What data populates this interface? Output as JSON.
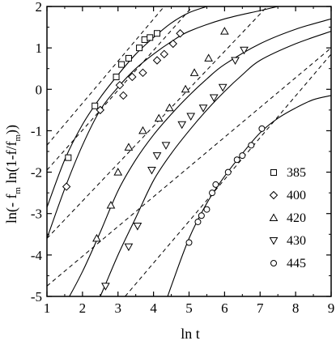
{
  "chart_data": {
    "type": "scatter",
    "xlabel": "ln t",
    "ylabel_parts": [
      "ln(- f",
      "m",
      " ln(1-f/f",
      "m",
      "))"
    ],
    "xlim": [
      1,
      9
    ],
    "ylim": [
      -5,
      2
    ],
    "xticks": [
      "1",
      "2",
      "3",
      "4",
      "5",
      "6",
      "7",
      "8",
      "9"
    ],
    "yticks": [
      "-5",
      "-4",
      "-3",
      "-2",
      "-1",
      "0",
      "1",
      "2"
    ],
    "legend_position": "lower-right",
    "series": [
      {
        "name": "385",
        "marker": "square",
        "points": [
          [
            1.6,
            -1.65
          ],
          [
            2.35,
            -0.4
          ],
          [
            2.95,
            0.3
          ],
          [
            3.1,
            0.6
          ],
          [
            3.3,
            0.75
          ],
          [
            3.6,
            1.0
          ],
          [
            3.75,
            1.2
          ],
          [
            3.9,
            1.25
          ],
          [
            4.1,
            1.35
          ]
        ],
        "fit_curve": [
          [
            1,
            -2.85
          ],
          [
            1.5,
            -1.7
          ],
          [
            2,
            -0.85
          ],
          [
            2.5,
            -0.2
          ],
          [
            3,
            0.35
          ],
          [
            3.5,
            0.85
          ],
          [
            4,
            1.25
          ],
          [
            4.5,
            1.6
          ],
          [
            5,
            1.85
          ],
          [
            5.5,
            2.0
          ]
        ],
        "dashed_line": [
          [
            1,
            -1.35
          ],
          [
            4.3,
            2.0
          ]
        ]
      },
      {
        "name": "400",
        "marker": "diamond",
        "points": [
          [
            1.55,
            -2.35
          ],
          [
            2.5,
            -0.5
          ],
          [
            3.05,
            0.1
          ],
          [
            3.15,
            -0.15
          ],
          [
            3.4,
            0.3
          ],
          [
            3.7,
            0.4
          ],
          [
            4.1,
            0.7
          ],
          [
            4.3,
            0.85
          ],
          [
            4.55,
            1.1
          ],
          [
            4.75,
            1.35
          ]
        ],
        "fit_curve": [
          [
            1,
            -3.6
          ],
          [
            1.5,
            -2.4
          ],
          [
            2,
            -1.35
          ],
          [
            2.5,
            -0.5
          ],
          [
            3,
            0.05
          ],
          [
            3.5,
            0.5
          ],
          [
            4,
            0.85
          ],
          [
            4.5,
            1.15
          ],
          [
            5,
            1.4
          ],
          [
            6,
            1.7
          ],
          [
            7,
            1.9
          ],
          [
            7.5,
            2.0
          ]
        ],
        "dashed_line": [
          [
            1,
            -1.95
          ],
          [
            5.1,
            2.0
          ]
        ]
      },
      {
        "name": "420",
        "marker": "triangle-up",
        "points": [
          [
            2.4,
            -3.6
          ],
          [
            2.8,
            -2.8
          ],
          [
            3.0,
            -2.0
          ],
          [
            3.3,
            -1.4
          ],
          [
            3.7,
            -1.0
          ],
          [
            4.15,
            -0.7
          ],
          [
            4.45,
            -0.45
          ],
          [
            4.9,
            0.0
          ],
          [
            5.15,
            0.4
          ],
          [
            5.55,
            0.75
          ],
          [
            6.0,
            1.4
          ]
        ],
        "fit_curve": [
          [
            1,
            -5.9
          ],
          [
            1.5,
            -5.2
          ],
          [
            2,
            -4.4
          ],
          [
            2.5,
            -3.45
          ],
          [
            3,
            -2.45
          ],
          [
            3.5,
            -1.7
          ],
          [
            4,
            -1.1
          ],
          [
            4.5,
            -0.6
          ],
          [
            5,
            -0.15
          ],
          [
            5.5,
            0.25
          ],
          [
            6,
            0.6
          ],
          [
            7,
            1.1
          ],
          [
            8,
            1.45
          ],
          [
            9,
            1.7
          ]
        ],
        "dashed_line": [
          [
            1,
            -3.6
          ],
          [
            7.2,
            2.0
          ]
        ]
      },
      {
        "name": "430",
        "marker": "triangle-down",
        "points": [
          [
            2.65,
            -4.75
          ],
          [
            3.3,
            -3.8
          ],
          [
            3.55,
            -3.3
          ],
          [
            3.95,
            -1.95
          ],
          [
            4.1,
            -1.6
          ],
          [
            4.35,
            -1.35
          ],
          [
            4.8,
            -0.85
          ],
          [
            5.05,
            -0.65
          ],
          [
            5.4,
            -0.45
          ],
          [
            5.7,
            -0.2
          ],
          [
            5.95,
            0.05
          ],
          [
            6.3,
            0.7
          ],
          [
            6.55,
            0.95
          ]
        ],
        "fit_curve": [
          [
            2.2,
            -5.5
          ],
          [
            2.5,
            -5.0
          ],
          [
            3,
            -4.0
          ],
          [
            3.5,
            -3.1
          ],
          [
            4,
            -2.2
          ],
          [
            4.5,
            -1.55
          ],
          [
            5,
            -1.0
          ],
          [
            5.5,
            -0.5
          ],
          [
            6,
            -0.05
          ],
          [
            6.5,
            0.35
          ],
          [
            7,
            0.7
          ],
          [
            8,
            1.1
          ],
          [
            9,
            1.4
          ]
        ],
        "dashed_line": [
          [
            1,
            -4.75
          ],
          [
            9,
            1.0
          ]
        ]
      },
      {
        "name": "445",
        "marker": "circle",
        "points": [
          [
            5.0,
            -3.7
          ],
          [
            5.25,
            -3.2
          ],
          [
            5.35,
            -3.05
          ],
          [
            5.5,
            -2.9
          ],
          [
            5.65,
            -2.5
          ],
          [
            5.75,
            -2.3
          ],
          [
            6.1,
            -2.0
          ],
          [
            6.35,
            -1.7
          ],
          [
            6.5,
            -1.6
          ],
          [
            6.75,
            -1.35
          ],
          [
            7.05,
            -0.95
          ]
        ],
        "fit_curve": [
          [
            4.2,
            -5.5
          ],
          [
            4.5,
            -4.75
          ],
          [
            5,
            -3.6
          ],
          [
            5.5,
            -2.75
          ],
          [
            6,
            -2.1
          ],
          [
            6.5,
            -1.55
          ],
          [
            7,
            -1.05
          ],
          [
            7.5,
            -0.7
          ],
          [
            8,
            -0.45
          ],
          [
            8.5,
            -0.25
          ],
          [
            9,
            -0.15
          ]
        ],
        "dashed_line": [
          [
            3.2,
            -5.0
          ],
          [
            9,
            0.85
          ]
        ]
      }
    ]
  }
}
